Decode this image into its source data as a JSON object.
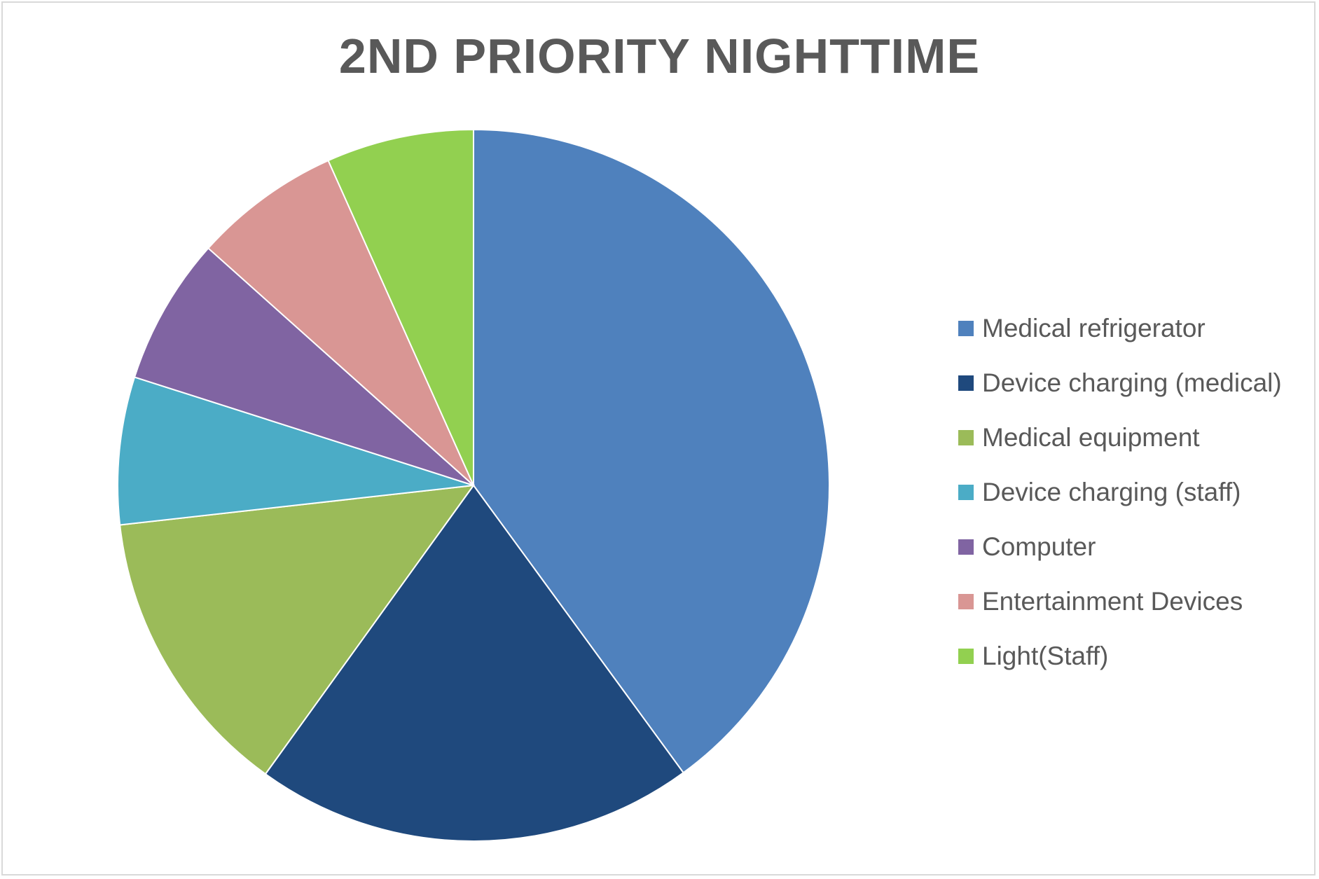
{
  "chart_data": {
    "type": "pie",
    "title": "2ND PRIORITY NIGHTTIME",
    "legend_position": "right",
    "start_angle_deg": 0,
    "direction": "clockwise",
    "categories": [
      "Medical refrigerator",
      "Device charging (medical)",
      "Medical equipment",
      "Device charging (staff)",
      "Computer",
      "Entertainment Devices",
      "Light(Staff)"
    ],
    "values": [
      40.0,
      20.0,
      13.3,
      6.7,
      6.7,
      6.7,
      6.7
    ],
    "colors": [
      "#4F81BD",
      "#1F497D",
      "#9BBB59",
      "#4BACC6",
      "#8064A2",
      "#D99694",
      "#92D050"
    ]
  }
}
